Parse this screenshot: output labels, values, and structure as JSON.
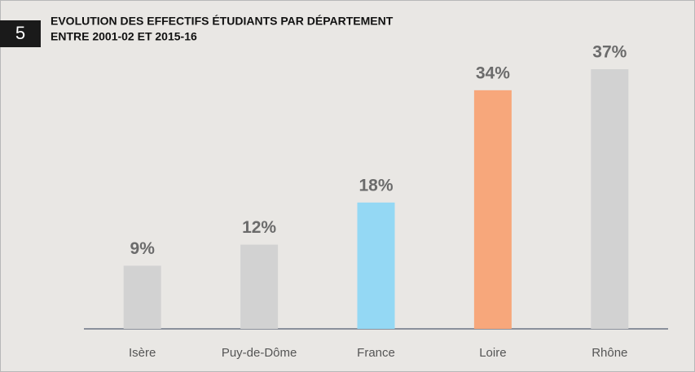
{
  "figure_number": "5",
  "chart_data": {
    "type": "bar",
    "title": [
      "EVOLUTION DES EFFECTIFS ÉTUDIANTS PAR DÉPARTEMENT",
      "ENTRE 2001-02 ET 2015-16"
    ],
    "categories": [
      "Isère",
      "Puy-de-Dôme",
      "France",
      "Loire",
      "Rhône"
    ],
    "values": [
      9,
      12,
      18,
      34,
      37
    ],
    "value_labels": [
      "9%",
      "12%",
      "18%",
      "34%",
      "37%"
    ],
    "colors": [
      "#d2d2d2",
      "#d2d2d2",
      "#94d8f4",
      "#f7a77b",
      "#d2d2d2"
    ]
  }
}
